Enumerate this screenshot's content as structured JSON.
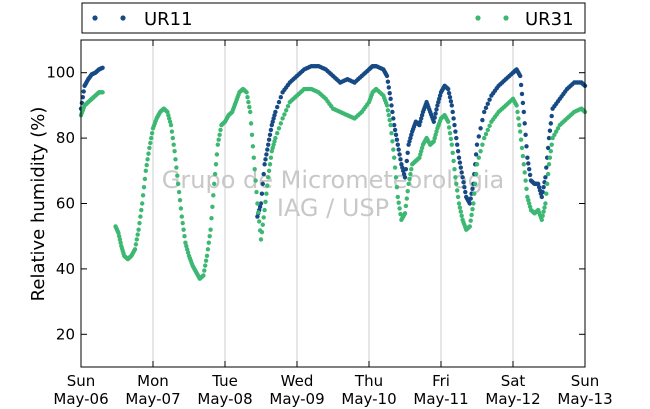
{
  "chart_data": {
    "type": "scatter",
    "title": "",
    "xlabel": "",
    "ylabel": "Relative humidity (%)",
    "ylim": [
      10,
      110
    ],
    "yticks": [
      20,
      40,
      60,
      80,
      100
    ],
    "xlim": [
      "2012-05-06",
      "2012-05-13"
    ],
    "xticks": [
      {
        "day": "Sun",
        "date": "May-06"
      },
      {
        "day": "Mon",
        "date": "May-07"
      },
      {
        "day": "Tue",
        "date": "May-08"
      },
      {
        "day": "Wed",
        "date": "May-09"
      },
      {
        "day": "Thu",
        "date": "May-10"
      },
      {
        "day": "Fri",
        "date": "May-11"
      },
      {
        "day": "Sat",
        "date": "May-12"
      },
      {
        "day": "Sun",
        "date": "May-13"
      }
    ],
    "grid": "vertical",
    "legend_position": "top",
    "watermark": [
      "Grupo de Micrometeorologia",
      "IAG / USP"
    ],
    "series": [
      {
        "name": "UR11",
        "color": "#174a85",
        "points": [
          [
            0.0,
            89
          ],
          [
            0.05,
            96
          ],
          [
            0.1,
            98
          ],
          [
            0.15,
            99.5
          ],
          [
            0.2,
            100
          ],
          [
            0.25,
            101
          ],
          [
            0.3,
            101.5
          ],
          [
            2.45,
            56
          ],
          [
            2.5,
            60
          ],
          [
            2.55,
            72
          ],
          [
            2.6,
            78
          ],
          [
            2.65,
            84
          ],
          [
            2.7,
            88
          ],
          [
            2.8,
            94
          ],
          [
            2.9,
            97
          ],
          [
            3.0,
            99
          ],
          [
            3.1,
            101
          ],
          [
            3.2,
            102
          ],
          [
            3.3,
            102
          ],
          [
            3.4,
            101
          ],
          [
            3.5,
            99
          ],
          [
            3.6,
            97
          ],
          [
            3.7,
            98
          ],
          [
            3.8,
            97
          ],
          [
            3.9,
            99
          ],
          [
            4.0,
            101
          ],
          [
            4.05,
            102
          ],
          [
            4.1,
            102
          ],
          [
            4.2,
            101
          ],
          [
            4.25,
            99
          ],
          [
            4.3,
            92
          ],
          [
            4.35,
            84
          ],
          [
            4.4,
            78
          ],
          [
            4.45,
            72
          ],
          [
            4.5,
            68
          ],
          [
            4.55,
            78
          ],
          [
            4.6,
            82
          ],
          [
            4.65,
            85
          ],
          [
            4.7,
            84
          ],
          [
            4.75,
            88
          ],
          [
            4.8,
            91
          ],
          [
            4.85,
            88
          ],
          [
            4.9,
            85
          ],
          [
            4.95,
            90
          ],
          [
            5.0,
            94
          ],
          [
            5.05,
            96
          ],
          [
            5.1,
            95
          ],
          [
            5.15,
            90
          ],
          [
            5.2,
            82
          ],
          [
            5.25,
            74
          ],
          [
            5.3,
            68
          ],
          [
            5.35,
            62
          ],
          [
            5.4,
            60
          ],
          [
            5.45,
            66
          ],
          [
            5.5,
            78
          ],
          [
            5.6,
            88
          ],
          [
            5.7,
            93
          ],
          [
            5.8,
            96
          ],
          [
            5.9,
            98
          ],
          [
            6.0,
            100
          ],
          [
            6.05,
            101
          ],
          [
            6.1,
            99
          ],
          [
            6.15,
            88
          ],
          [
            6.2,
            74
          ],
          [
            6.25,
            67
          ],
          [
            6.3,
            66
          ],
          [
            6.35,
            66
          ],
          [
            6.4,
            62
          ],
          [
            6.45,
            68
          ],
          [
            6.5,
            80
          ],
          [
            6.55,
            89
          ],
          [
            6.65,
            92
          ],
          [
            6.75,
            95
          ],
          [
            6.85,
            97
          ],
          [
            6.95,
            97
          ],
          [
            7.0,
            96
          ]
        ]
      },
      {
        "name": "UR31",
        "color": "#3db872",
        "points": [
          [
            0.0,
            87
          ],
          [
            0.05,
            90
          ],
          [
            0.1,
            91
          ],
          [
            0.15,
            92
          ],
          [
            0.2,
            93
          ],
          [
            0.25,
            94
          ],
          [
            0.3,
            94
          ],
          [
            0.48,
            53
          ],
          [
            0.52,
            51
          ],
          [
            0.56,
            47
          ],
          [
            0.6,
            44
          ],
          [
            0.65,
            43
          ],
          [
            0.7,
            44
          ],
          [
            0.75,
            46
          ],
          [
            0.8,
            52
          ],
          [
            0.85,
            60
          ],
          [
            0.9,
            70
          ],
          [
            0.95,
            77
          ],
          [
            1.0,
            83
          ],
          [
            1.05,
            86
          ],
          [
            1.1,
            88
          ],
          [
            1.15,
            89
          ],
          [
            1.2,
            88
          ],
          [
            1.25,
            84
          ],
          [
            1.3,
            76
          ],
          [
            1.35,
            66
          ],
          [
            1.4,
            56
          ],
          [
            1.45,
            48
          ],
          [
            1.5,
            44
          ],
          [
            1.55,
            41
          ],
          [
            1.6,
            39
          ],
          [
            1.65,
            37
          ],
          [
            1.7,
            38
          ],
          [
            1.75,
            44
          ],
          [
            1.8,
            52
          ],
          [
            1.85,
            66
          ],
          [
            1.9,
            78
          ],
          [
            1.95,
            84
          ],
          [
            2.0,
            85
          ],
          [
            2.05,
            87
          ],
          [
            2.1,
            88
          ],
          [
            2.15,
            91
          ],
          [
            2.2,
            94
          ],
          [
            2.25,
            95
          ],
          [
            2.3,
            94
          ],
          [
            2.35,
            88
          ],
          [
            2.4,
            74
          ],
          [
            2.45,
            60
          ],
          [
            2.5,
            49
          ],
          [
            2.55,
            58
          ],
          [
            2.6,
            68
          ],
          [
            2.65,
            76
          ],
          [
            2.7,
            80
          ],
          [
            2.8,
            86
          ],
          [
            2.9,
            91
          ],
          [
            3.0,
            93
          ],
          [
            3.1,
            95
          ],
          [
            3.2,
            95
          ],
          [
            3.3,
            94
          ],
          [
            3.4,
            92
          ],
          [
            3.5,
            89
          ],
          [
            3.6,
            88
          ],
          [
            3.7,
            87
          ],
          [
            3.8,
            86
          ],
          [
            3.9,
            88
          ],
          [
            4.0,
            91
          ],
          [
            4.05,
            94
          ],
          [
            4.1,
            95
          ],
          [
            4.2,
            93
          ],
          [
            4.25,
            90
          ],
          [
            4.3,
            84
          ],
          [
            4.35,
            74
          ],
          [
            4.4,
            62
          ],
          [
            4.45,
            55
          ],
          [
            4.5,
            57
          ],
          [
            4.55,
            66
          ],
          [
            4.6,
            72
          ],
          [
            4.65,
            73
          ],
          [
            4.7,
            74
          ],
          [
            4.75,
            78
          ],
          [
            4.8,
            80
          ],
          [
            4.85,
            78
          ],
          [
            4.9,
            79
          ],
          [
            4.95,
            83
          ],
          [
            5.0,
            86
          ],
          [
            5.05,
            87
          ],
          [
            5.1,
            85
          ],
          [
            5.15,
            78
          ],
          [
            5.2,
            68
          ],
          [
            5.25,
            60
          ],
          [
            5.3,
            55
          ],
          [
            5.35,
            52
          ],
          [
            5.4,
            53
          ],
          [
            5.45,
            60
          ],
          [
            5.5,
            72
          ],
          [
            5.6,
            80
          ],
          [
            5.7,
            85
          ],
          [
            5.8,
            88
          ],
          [
            5.9,
            90
          ],
          [
            6.0,
            92
          ],
          [
            6.05,
            90
          ],
          [
            6.1,
            82
          ],
          [
            6.15,
            72
          ],
          [
            6.2,
            62
          ],
          [
            6.25,
            58
          ],
          [
            6.3,
            57
          ],
          [
            6.35,
            58
          ],
          [
            6.4,
            55
          ],
          [
            6.45,
            60
          ],
          [
            6.5,
            72
          ],
          [
            6.55,
            80
          ],
          [
            6.65,
            84
          ],
          [
            6.75,
            86
          ],
          [
            6.85,
            88
          ],
          [
            6.95,
            89
          ],
          [
            7.0,
            88
          ]
        ]
      }
    ]
  }
}
